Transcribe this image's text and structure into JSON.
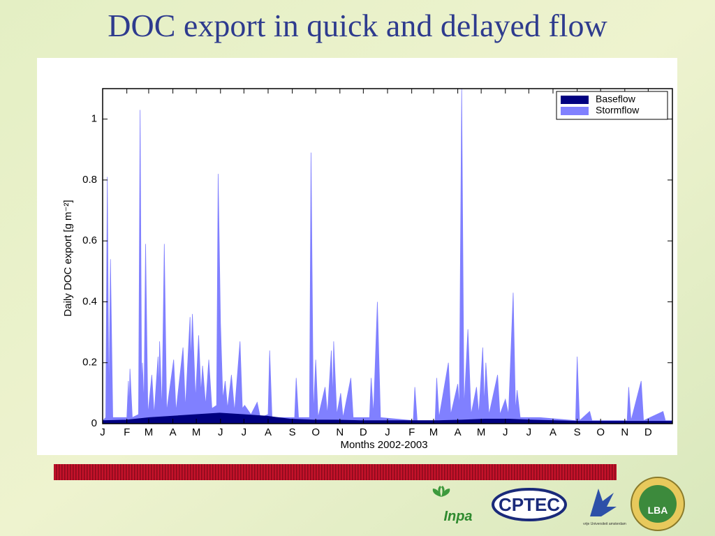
{
  "slide_title": "DOC export in quick and delayed flow",
  "chart_data": {
    "type": "area",
    "x_label": "Months 2002-2003",
    "y_label": "Daily DOC export [g m⁻²]",
    "xlim": [
      0,
      730
    ],
    "xticks": [
      {
        "value": 0,
        "label": "J"
      },
      {
        "value": 31,
        "label": "F"
      },
      {
        "value": 59,
        "label": "M"
      },
      {
        "value": 90,
        "label": "A"
      },
      {
        "value": 120,
        "label": "M"
      },
      {
        "value": 151,
        "label": "J"
      },
      {
        "value": 181,
        "label": "J"
      },
      {
        "value": 212,
        "label": "A"
      },
      {
        "value": 243,
        "label": "S"
      },
      {
        "value": 273,
        "label": "O"
      },
      {
        "value": 304,
        "label": "N"
      },
      {
        "value": 334,
        "label": "D"
      },
      {
        "value": 365,
        "label": "J"
      },
      {
        "value": 396,
        "label": "F"
      },
      {
        "value": 424,
        "label": "M"
      },
      {
        "value": 455,
        "label": "A"
      },
      {
        "value": 485,
        "label": "M"
      },
      {
        "value": 516,
        "label": "J"
      },
      {
        "value": 546,
        "label": "J"
      },
      {
        "value": 577,
        "label": "A"
      },
      {
        "value": 608,
        "label": "S"
      },
      {
        "value": 638,
        "label": "O"
      },
      {
        "value": 669,
        "label": "N"
      },
      {
        "value": 699,
        "label": "D"
      }
    ],
    "ylim": [
      0,
      1.1
    ],
    "yticks": [
      0,
      0.2,
      0.4,
      0.6,
      0.8,
      1
    ],
    "legend": "upper right",
    "series": [
      {
        "name": "Stormflow",
        "color": "#8080ff",
        "x": [
          0,
          4,
          6,
          8,
          10,
          13,
          31,
          33,
          34,
          35,
          38,
          46,
          48,
          50,
          51,
          53,
          55,
          58,
          63,
          66,
          71,
          72,
          73,
          76,
          79,
          82,
          91,
          94,
          103,
          106,
          112,
          113,
          115,
          119,
          123,
          126,
          128,
          132,
          136,
          140,
          146,
          148,
          151,
          154,
          157,
          160,
          165,
          169,
          176,
          179,
          182,
          190,
          198,
          202,
          212,
          214,
          217,
          246,
          248,
          251,
          265,
          267,
          270,
          273,
          276,
          285,
          288,
          293,
          295,
          296,
          300,
          305,
          308,
          318,
          321,
          342,
          344,
          347,
          352,
          356,
          398,
          400,
          403,
          426,
          428,
          431,
          443,
          446,
          455,
          457,
          460,
          463,
          468,
          472,
          479,
          482,
          487,
          489,
          491,
          495,
          506,
          509,
          516,
          520,
          526,
          529,
          531,
          535,
          560,
          606,
          608,
          611,
          624,
          627,
          672,
          674,
          677,
          690,
          693,
          718,
          721,
          730
        ],
        "values": [
          0.01,
          0.02,
          0.81,
          0.05,
          0.54,
          0.02,
          0.02,
          0.14,
          0.05,
          0.18,
          0.02,
          0.03,
          1.03,
          0.1,
          0.2,
          0.06,
          0.59,
          0.03,
          0.16,
          0.03,
          0.22,
          0.1,
          0.27,
          0.04,
          0.59,
          0.04,
          0.21,
          0.04,
          0.25,
          0.05,
          0.35,
          0.2,
          0.36,
          0.08,
          0.29,
          0.1,
          0.19,
          0.06,
          0.21,
          0.05,
          0.06,
          0.82,
          0.33,
          0.08,
          0.14,
          0.05,
          0.16,
          0.04,
          0.27,
          0.05,
          0.06,
          0.03,
          0.07,
          0.02,
          0.03,
          0.24,
          0.02,
          0.02,
          0.15,
          0.02,
          0.02,
          0.89,
          0.03,
          0.21,
          0.02,
          0.12,
          0.03,
          0.24,
          0.08,
          0.27,
          0.03,
          0.1,
          0.02,
          0.15,
          0.02,
          0.02,
          0.15,
          0.03,
          0.4,
          0.02,
          0.01,
          0.12,
          0.01,
          0.01,
          0.15,
          0.02,
          0.2,
          0.03,
          0.13,
          0.05,
          1.1,
          0.05,
          0.31,
          0.03,
          0.12,
          0.03,
          0.25,
          0.06,
          0.2,
          0.03,
          0.16,
          0.03,
          0.08,
          0.03,
          0.43,
          0.04,
          0.11,
          0.02,
          0.02,
          0.01,
          0.22,
          0.01,
          0.04,
          0.01,
          0.01,
          0.12,
          0.01,
          0.14,
          0.01,
          0.04,
          0.01,
          0.01
        ]
      },
      {
        "name": "Baseflow",
        "color": "#000080",
        "x": [
          0,
          30,
          60,
          90,
          120,
          150,
          180,
          210,
          240,
          270,
          300,
          330,
          365,
          400,
          430,
          460,
          490,
          520,
          550,
          580,
          610,
          640,
          670,
          700,
          730
        ],
        "values": [
          0.01,
          0.012,
          0.02,
          0.025,
          0.03,
          0.035,
          0.03,
          0.025,
          0.015,
          0.012,
          0.012,
          0.01,
          0.01,
          0.01,
          0.01,
          0.012,
          0.015,
          0.015,
          0.012,
          0.01,
          0.008,
          0.008,
          0.008,
          0.008,
          0.008
        ]
      }
    ]
  },
  "logos": [
    "Inpa",
    "CPTEC",
    "vrije Universiteit amsterdam",
    "LBA"
  ]
}
